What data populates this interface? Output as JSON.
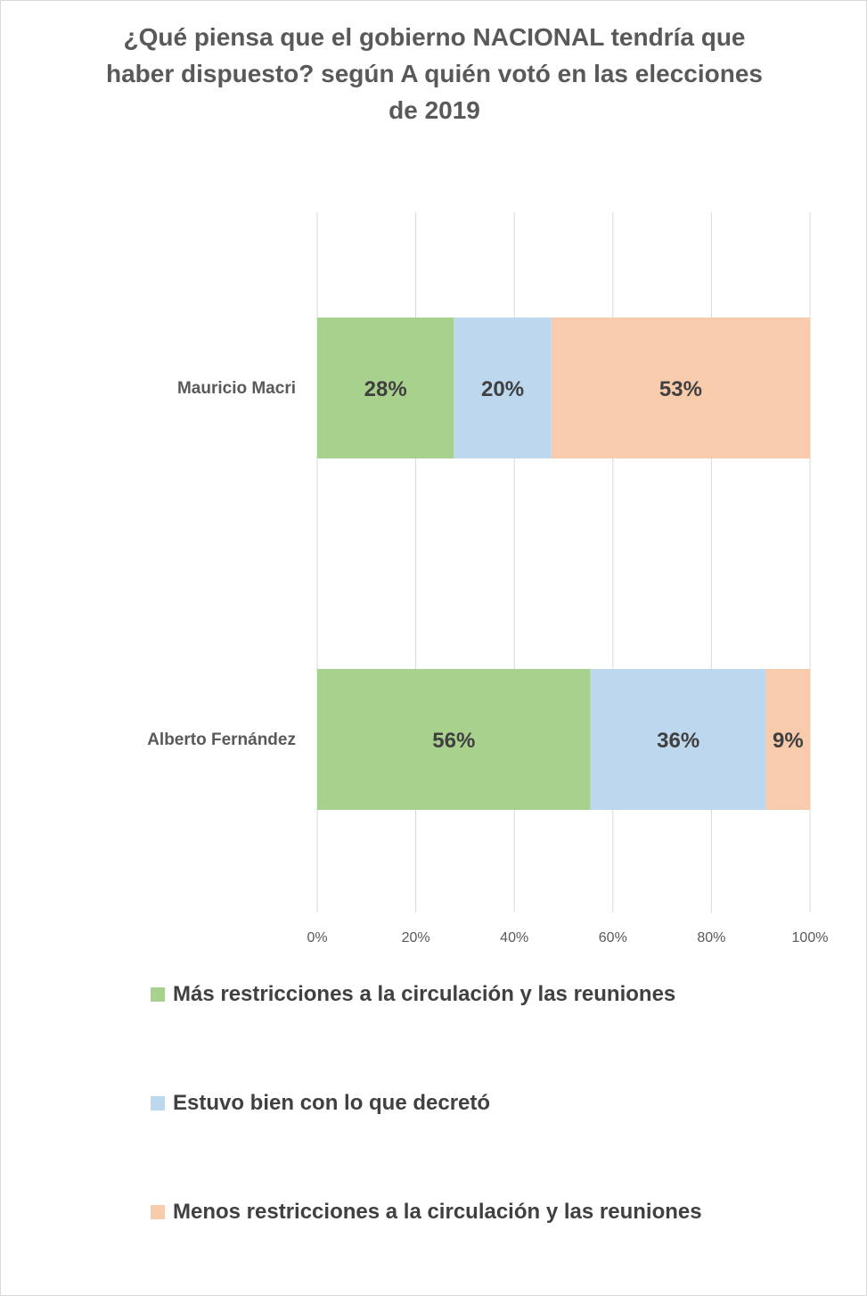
{
  "chart_data": {
    "type": "bar",
    "orientation": "horizontal",
    "stacked": true,
    "title_lines": [
      "¿Qué piensa que el gobierno NACIONAL tendría que",
      "haber dispuesto? según A quién votó en las elecciones",
      "de 2019"
    ],
    "categories": [
      "Mauricio Macri",
      "Alberto Fernández"
    ],
    "series": [
      {
        "name": "Más restricciones a la circulación y las reuniones",
        "color": "#a9d18e",
        "values": [
          28,
          56
        ],
        "labels": [
          "28%",
          "56%"
        ]
      },
      {
        "name": "Estuvo bien con lo que decretó",
        "color": "#bdd7ee",
        "values": [
          20,
          36
        ],
        "labels": [
          "20%",
          "36%"
        ]
      },
      {
        "name": "Menos restricciones a la circulación y las reuniones",
        "color": "#f8cbad",
        "values": [
          53,
          9
        ],
        "labels": [
          "53%",
          "9%"
        ]
      }
    ],
    "xlim": [
      0,
      100
    ],
    "x_ticks": [
      "0%",
      "20%",
      "40%",
      "60%",
      "80%",
      "100%"
    ],
    "grid": true,
    "legend_position": "bottom"
  }
}
